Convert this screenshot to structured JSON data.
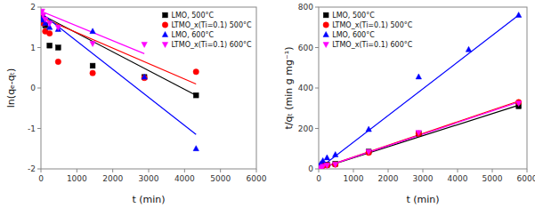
{
  "chart_data": [
    {
      "type": "scatter",
      "xlabel": "t (min)",
      "ylabel": "ln(qₑ-qₜ)",
      "xlim": [
        0,
        6000
      ],
      "ylim": [
        -2,
        2
      ],
      "xticks": [
        0,
        1000,
        2000,
        3000,
        4000,
        5000,
        6000
      ],
      "yticks": [
        -2,
        -1,
        0,
        1,
        2
      ],
      "grid": false,
      "legend": "upper right",
      "series": [
        {
          "name": "LMO, 500°C",
          "color": "#000000",
          "marker": "square",
          "x": [
            30,
            60,
            120,
            240,
            480,
            1440,
            2880,
            4320
          ],
          "values": [
            1.75,
            1.65,
            1.55,
            1.05,
            1.0,
            0.55,
            0.27,
            -0.18
          ]
        },
        {
          "type": "line",
          "color": "#000000",
          "x": [
            0,
            4320
          ],
          "values": [
            1.82,
            -0.18
          ]
        },
        {
          "name": "LTMO_x(Ti=0.1) 500°C",
          "color": "#ff0000",
          "marker": "circle",
          "x": [
            30,
            60,
            120,
            240,
            480,
            1440,
            2880,
            4320
          ],
          "values": [
            1.7,
            1.6,
            1.4,
            1.35,
            0.65,
            0.37,
            0.25,
            0.4
          ]
        },
        {
          "type": "line",
          "color": "#ff0000",
          "x": [
            0,
            4320
          ],
          "values": [
            1.75,
            0.1
          ]
        },
        {
          "name": "LMO, 600°C",
          "color": "#0000ff",
          "marker": "triangle-up",
          "x": [
            30,
            60,
            120,
            240,
            480,
            1440,
            2880,
            4320
          ],
          "values": [
            1.72,
            1.68,
            1.6,
            1.5,
            1.45,
            1.4,
            0.27,
            -1.5
          ]
        },
        {
          "type": "line",
          "color": "#0000ff",
          "x": [
            0,
            4320
          ],
          "values": [
            1.85,
            -1.15
          ]
        },
        {
          "name": "LTMO_x(Ti=0.1) 600°C",
          "color": "#ff00ff",
          "marker": "triangle-down",
          "x": [
            30,
            60,
            120,
            240,
            480,
            1440,
            2880
          ],
          "values": [
            1.9,
            1.8,
            1.7,
            1.6,
            1.5,
            1.1,
            1.08
          ]
        },
        {
          "type": "line",
          "color": "#ff00ff",
          "x": [
            0,
            2880
          ],
          "values": [
            1.9,
            0.85
          ]
        }
      ]
    },
    {
      "type": "scatter",
      "xlabel": "t (min)",
      "ylabel": "t/qₜ (min g mg⁻¹)",
      "xlim": [
        0,
        6000
      ],
      "ylim": [
        0,
        800
      ],
      "xticks": [
        0,
        1000,
        2000,
        3000,
        4000,
        5000,
        6000
      ],
      "yticks": [
        0,
        200,
        400,
        600,
        800
      ],
      "grid": false,
      "legend": "upper left",
      "series": [
        {
          "name": "LMO, 500°C",
          "color": "#000000",
          "marker": "square",
          "x": [
            30,
            60,
            120,
            240,
            480,
            1440,
            2880,
            5760
          ],
          "values": [
            5,
            10,
            18,
            20,
            25,
            85,
            175,
            310
          ]
        },
        {
          "type": "line",
          "color": "#000000",
          "x": [
            0,
            5760
          ],
          "values": [
            0,
            315
          ]
        },
        {
          "name": "LTMO_x(Ti=0.1) 500°C",
          "color": "#ff0000",
          "marker": "circle",
          "x": [
            30,
            60,
            120,
            240,
            480,
            1440,
            2880,
            5760
          ],
          "values": [
            5,
            8,
            15,
            18,
            22,
            80,
            175,
            330
          ]
        },
        {
          "type": "line",
          "color": "#ff0000",
          "x": [
            0,
            5760
          ],
          "values": [
            0,
            335
          ]
        },
        {
          "name": "LMO, 600°C",
          "color": "#0000ff",
          "marker": "triangle-up",
          "x": [
            30,
            60,
            120,
            240,
            480,
            1440,
            2880,
            4320,
            5760
          ],
          "values": [
            15,
            25,
            40,
            55,
            70,
            195,
            455,
            590,
            760
          ]
        },
        {
          "type": "line",
          "color": "#0000ff",
          "x": [
            0,
            5760
          ],
          "values": [
            0,
            760
          ]
        },
        {
          "name": "LTMO_x(Ti=0.1) 600°C",
          "color": "#ff00ff",
          "marker": "triangle-down",
          "x": [
            30,
            60,
            120,
            240,
            480,
            1440,
            2880,
            5760
          ],
          "values": [
            3,
            6,
            12,
            18,
            22,
            85,
            180,
            325
          ]
        },
        {
          "type": "line",
          "color": "#ff00ff",
          "x": [
            0,
            5760
          ],
          "values": [
            0,
            330
          ]
        }
      ]
    }
  ]
}
